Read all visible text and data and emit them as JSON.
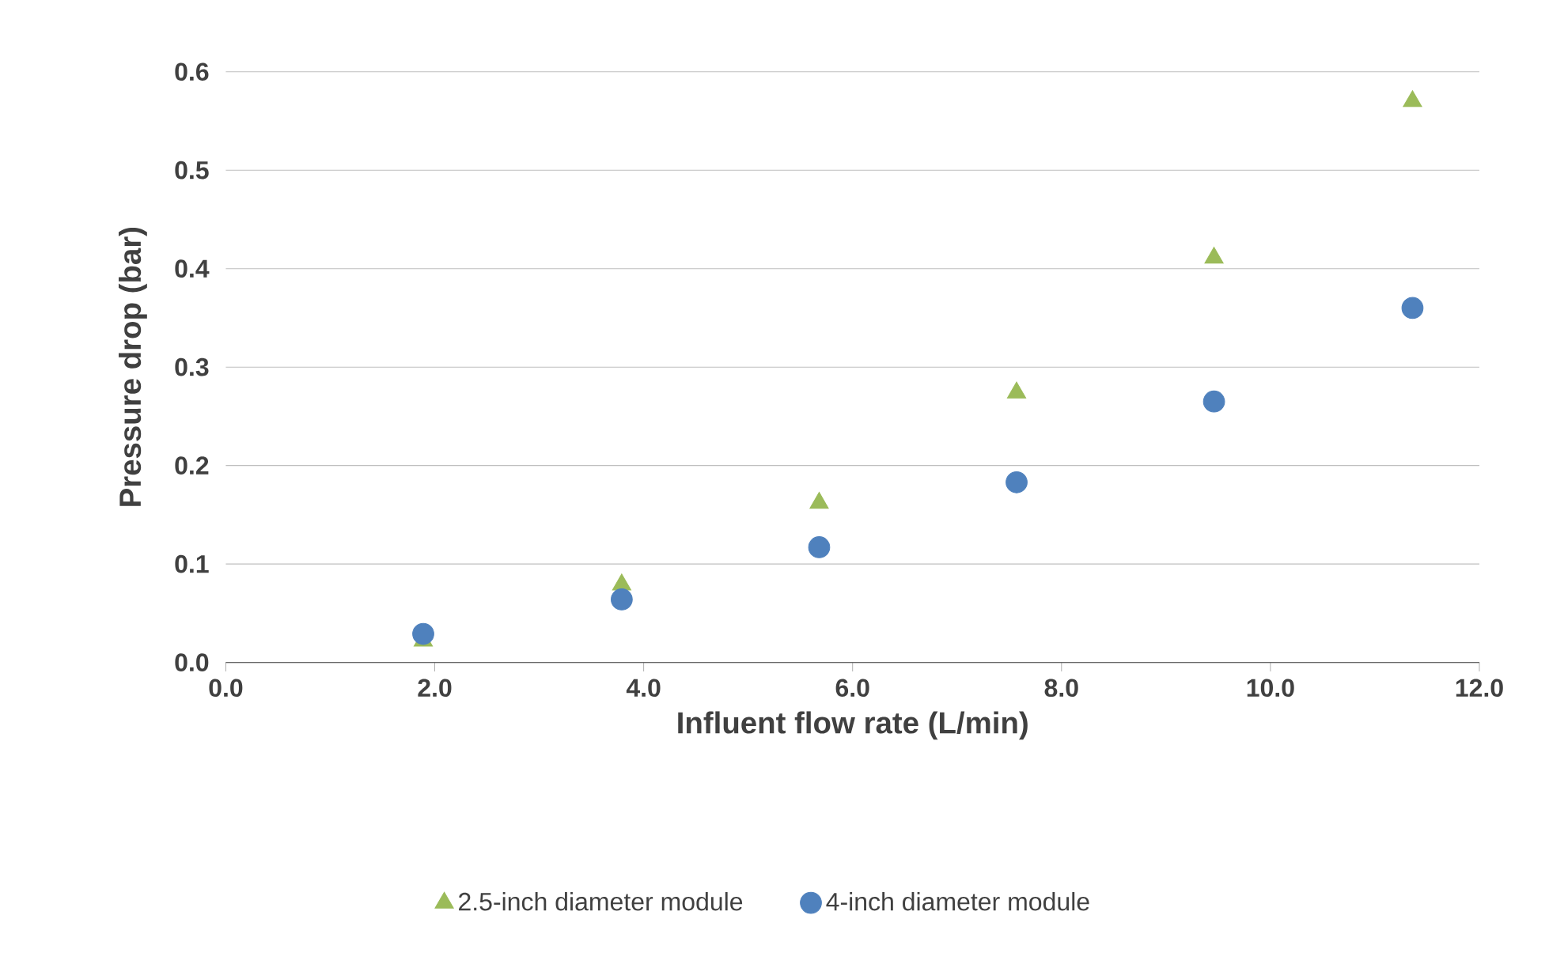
{
  "chart_data": {
    "type": "scatter",
    "xlabel": "Influent flow rate (L/min)",
    "ylabel": "Pressure drop (bar)",
    "xlim": [
      0,
      12
    ],
    "ylim": [
      0,
      0.6
    ],
    "xticks": [
      {
        "value": 0,
        "label": "0.0"
      },
      {
        "value": 2,
        "label": "2.0"
      },
      {
        "value": 4,
        "label": "4.0"
      },
      {
        "value": 6,
        "label": "6.0"
      },
      {
        "value": 8,
        "label": "8.0"
      },
      {
        "value": 10,
        "label": "10.0"
      },
      {
        "value": 12,
        "label": "12.0"
      }
    ],
    "yticks": [
      {
        "value": 0,
        "label": "0.0"
      },
      {
        "value": 0.1,
        "label": "0.1"
      },
      {
        "value": 0.2,
        "label": "0.2"
      },
      {
        "value": 0.3,
        "label": "0.3"
      },
      {
        "value": 0.4,
        "label": "0.4"
      },
      {
        "value": 0.5,
        "label": "0.5"
      },
      {
        "value": 0.6,
        "label": "0.6"
      }
    ],
    "grid": "y",
    "legend": "bottom",
    "series": [
      {
        "name": "2.5-inch diameter module",
        "color": "#9bbb59",
        "marker": "triangle",
        "x": [
          1.89,
          3.79,
          5.68,
          7.57,
          9.46,
          11.36
        ],
        "values": [
          0.022,
          0.079,
          0.162,
          0.274,
          0.411,
          0.57
        ]
      },
      {
        "name": "4-inch diameter module",
        "color": "#4f81bd",
        "marker": "circle",
        "x": [
          1.89,
          3.79,
          5.68,
          7.57,
          9.46,
          11.36
        ],
        "values": [
          0.029,
          0.064,
          0.117,
          0.183,
          0.265,
          0.36
        ]
      }
    ]
  }
}
